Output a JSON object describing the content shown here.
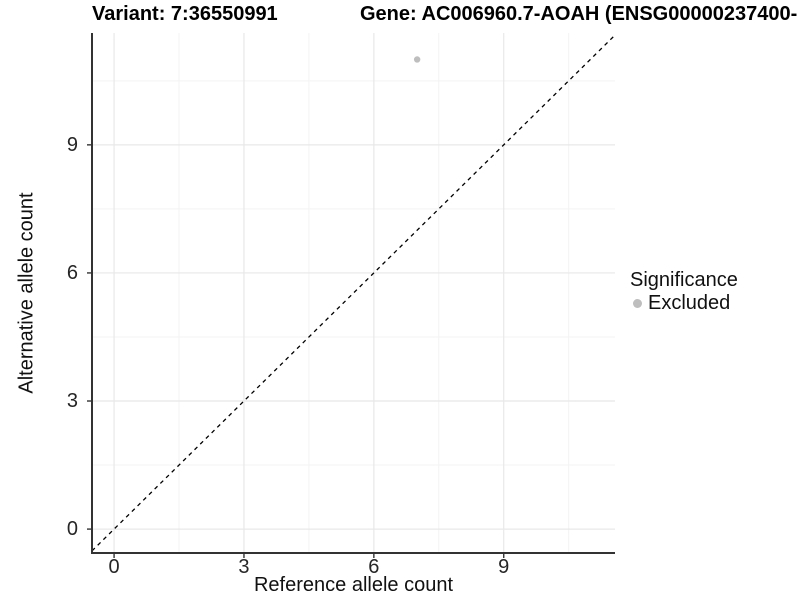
{
  "titles": {
    "variant": "Variant: 7:36550991",
    "gene": "Gene: AC006960.7-AOAH (ENSG00000237400-"
  },
  "chart_data": {
    "type": "scatter",
    "title": "Variant: 7:36550991   Gene: AC006960.7-AOAH (ENSG00000237400-",
    "xlabel": "Reference allele count",
    "ylabel": "Alternative allele count",
    "x_ticks": [
      0,
      3,
      6,
      9
    ],
    "y_ticks": [
      0,
      3,
      6,
      9
    ],
    "xlim": [
      -0.51,
      11.57
    ],
    "ylim": [
      -0.56,
      11.62
    ],
    "grid": {
      "major": true,
      "minor": true,
      "minor_offset": 1.5
    },
    "points": [
      {
        "x": 7,
        "y": 11,
        "series": "Excluded"
      }
    ],
    "reference_line": {
      "kind": "identity",
      "slope": 1,
      "intercept": 0,
      "style": "dashed",
      "color": "#000000"
    },
    "legend": {
      "title": "Significance",
      "position": "right",
      "entries": [
        {
          "label": "Excluded",
          "color": "#bebebe"
        }
      ]
    },
    "colors": {
      "point": "#bebebe",
      "grid_major": "#e8e8e8",
      "grid_minor": "#f3f3f3",
      "axis_line": "#333333",
      "tick_mark": "#333333",
      "background": "#ffffff"
    }
  }
}
